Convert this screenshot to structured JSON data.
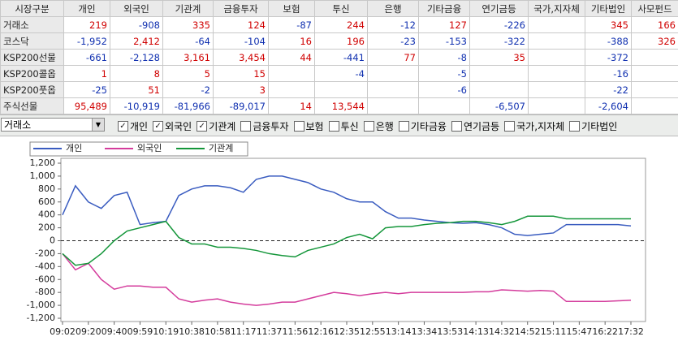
{
  "table": {
    "headers": [
      "시장구분",
      "개인",
      "외국인",
      "기관계",
      "금융투자",
      "보험",
      "투신",
      "은행",
      "기타금융",
      "연기금등",
      "국가,지자체",
      "기타법인",
      "사모펀드"
    ],
    "rows": [
      [
        "거래소",
        "219",
        "-908",
        "335",
        "124",
        "-87",
        "244",
        "-12",
        "127",
        "-226",
        null,
        "345",
        "166"
      ],
      [
        "코스닥",
        "-1,952",
        "2,412",
        "-64",
        "-104",
        "16",
        "196",
        "-23",
        "-153",
        "-322",
        null,
        "-388",
        "326"
      ],
      [
        "KSP200선물",
        "-661",
        "-2,128",
        "3,161",
        "3,454",
        "44",
        "-441",
        "77",
        "-8",
        "35",
        null,
        "-372",
        null
      ],
      [
        "KSP200콜옵",
        "1",
        "8",
        "5",
        "15",
        null,
        "-4",
        null,
        "-5",
        null,
        null,
        "-16",
        null
      ],
      [
        "KSP200풋옵",
        "-25",
        "51",
        "-2",
        "3",
        null,
        null,
        null,
        "-6",
        null,
        null,
        "-22",
        null
      ],
      [
        "주식선물",
        "95,489",
        "-10,919",
        "-81,966",
        "-89,017",
        "14",
        "13,544",
        null,
        null,
        "-6,507",
        null,
        "-2,604",
        null
      ]
    ]
  },
  "controls": {
    "market": "거래소",
    "filters": [
      {
        "label": "개인",
        "checked": true
      },
      {
        "label": "외국인",
        "checked": true
      },
      {
        "label": "기관계",
        "checked": true
      },
      {
        "label": "금융투자",
        "checked": false
      },
      {
        "label": "보험",
        "checked": false
      },
      {
        "label": "투신",
        "checked": false
      },
      {
        "label": "은행",
        "checked": false
      },
      {
        "label": "기타금융",
        "checked": false
      },
      {
        "label": "연기금등",
        "checked": false
      },
      {
        "label": "국가,지자체",
        "checked": false
      },
      {
        "label": "기타법인",
        "checked": false
      }
    ]
  },
  "chart_data": {
    "type": "line",
    "categories": [
      "09:02",
      null,
      "09:20",
      null,
      "09:40",
      null,
      "09:59",
      null,
      "10:19",
      null,
      "10:38",
      null,
      "10:58",
      null,
      "11:17",
      null,
      "11:37",
      null,
      "11:56",
      null,
      "12:16",
      null,
      "12:35",
      null,
      "12:55",
      null,
      "13:14",
      null,
      "13:34",
      null,
      "13:53",
      null,
      "14:13",
      null,
      "14:32",
      null,
      "14:52",
      null,
      "15:11",
      null,
      "15:47",
      null,
      "16:22",
      null,
      "17:32"
    ],
    "series": [
      {
        "name": "개인",
        "color": "#3a5cc0",
        "values": [
          400,
          850,
          600,
          500,
          700,
          750,
          250,
          280,
          300,
          700,
          800,
          850,
          850,
          820,
          750,
          950,
          1000,
          1000,
          950,
          900,
          800,
          750,
          650,
          600,
          600,
          450,
          350,
          350,
          320,
          300,
          280,
          270,
          280,
          250,
          200,
          100,
          80,
          100,
          120,
          250,
          250,
          250,
          250,
          250,
          230
        ]
      },
      {
        "name": "외국인",
        "color": "#d43c9c",
        "values": [
          -200,
          -450,
          -350,
          -600,
          -750,
          -700,
          -700,
          -720,
          -720,
          -900,
          -950,
          -920,
          -900,
          -950,
          -980,
          -1000,
          -980,
          -950,
          -950,
          -900,
          -850,
          -800,
          -820,
          -850,
          -820,
          -800,
          -820,
          -800,
          -800,
          -800,
          -800,
          -800,
          -790,
          -790,
          -760,
          -770,
          -780,
          -770,
          -780,
          -940,
          -940,
          -940,
          -940,
          -930,
          -920
        ]
      },
      {
        "name": "기관계",
        "color": "#14963a",
        "values": [
          -200,
          -380,
          -350,
          -200,
          0,
          150,
          200,
          250,
          300,
          50,
          -50,
          -50,
          -100,
          -100,
          -120,
          -150,
          -200,
          -230,
          -250,
          -150,
          -100,
          -50,
          50,
          100,
          30,
          200,
          220,
          220,
          250,
          270,
          280,
          300,
          300,
          280,
          250,
          300,
          380,
          380,
          380,
          340,
          340,
          340,
          340,
          340,
          340
        ]
      }
    ],
    "ylim": [
      -1200,
      1200
    ],
    "yticks": [
      {
        "value": 1200,
        "label": "1,200"
      },
      {
        "value": 1000,
        "label": "1,000"
      },
      800,
      600,
      400,
      200,
      0,
      -200,
      -400,
      -600,
      -800,
      {
        "value": -1000,
        "label": "-1,000"
      },
      {
        "value": -1200,
        "label": "-1,200"
      }
    ],
    "legend": "top-left"
  }
}
